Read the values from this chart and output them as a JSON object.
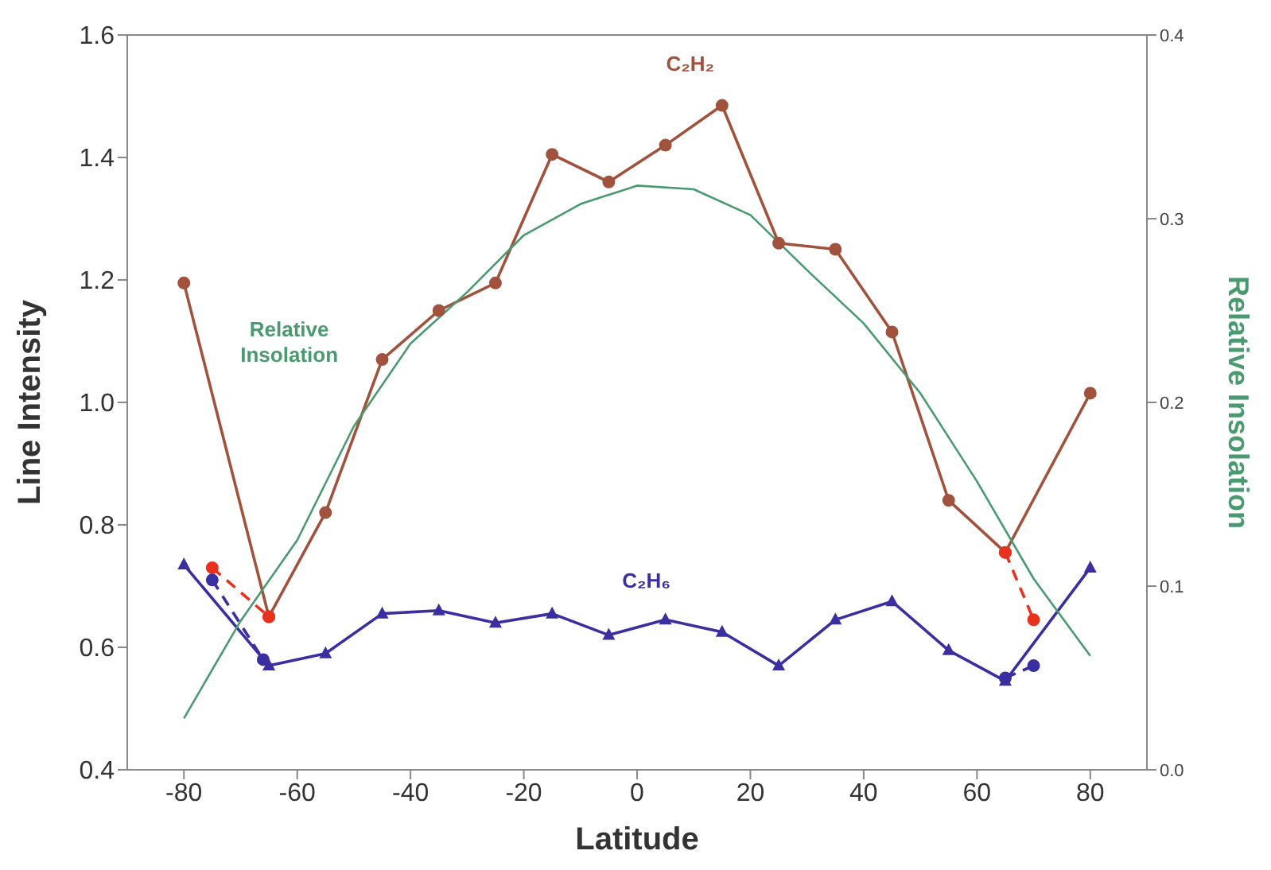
{
  "chart_data": {
    "type": "line",
    "xlabel": "Latitude",
    "ylabel": "Line Intensity",
    "y2label": "Relative Insolation",
    "x": [
      -80,
      -65,
      -55,
      -45,
      -35,
      -25,
      -15,
      -5,
      5,
      15,
      25,
      35,
      45,
      55,
      65,
      80
    ],
    "xlim": [
      -90,
      90
    ],
    "xticks": [
      -80,
      -60,
      -40,
      -20,
      0,
      20,
      40,
      60,
      80
    ],
    "ylim": [
      0.4,
      1.6
    ],
    "yticks": [
      {
        "value": 0.4,
        "label": "0.4"
      },
      {
        "value": 0.6,
        "label": "0.6"
      },
      {
        "value": 0.8,
        "label": "0.8"
      },
      {
        "value": 1.0,
        "label": "1.0"
      },
      {
        "value": 1.2,
        "label": "1.2"
      },
      {
        "value": 1.4,
        "label": "1.4"
      },
      {
        "value": 1.6,
        "label": "1.6"
      }
    ],
    "y2lim": [
      0,
      0.4
    ],
    "y2ticks": [
      {
        "value": 0,
        "label": "0.0"
      },
      {
        "value": 0.1,
        "label": "0.1"
      },
      {
        "value": 0.2,
        "label": "0.2"
      },
      {
        "value": 0.3,
        "label": "0.3"
      },
      {
        "value": 0.4,
        "label": "0.4"
      }
    ],
    "line_style": "solid",
    "series": [
      {
        "name": "C₂H₂",
        "color": "#a0523d",
        "marker": "circle",
        "values": [
          1.195,
          0.65,
          0.82,
          1.07,
          1.15,
          1.195,
          1.405,
          1.36,
          1.42,
          1.485,
          1.26,
          1.25,
          1.115,
          0.84,
          0.755,
          1.015
        ]
      },
      {
        "name": "C₂H₆",
        "color": "#3a2fa0",
        "marker": "triangle",
        "values": [
          0.735,
          0.57,
          0.59,
          0.655,
          0.66,
          0.64,
          0.655,
          0.62,
          0.645,
          0.625,
          0.57,
          0.645,
          0.675,
          0.595,
          0.545,
          0.73
        ]
      },
      {
        "name": "Relative Insolation",
        "color": "#4a9a70",
        "marker": "none",
        "axis": "y2",
        "x": [
          -80,
          -70,
          -60,
          -50,
          -40,
          -30,
          -20,
          -10,
          0,
          10,
          20,
          30,
          40,
          50,
          60,
          70,
          80
        ],
        "values": [
          0.028,
          0.081,
          0.125,
          0.187,
          0.232,
          0.26,
          0.291,
          0.308,
          0.318,
          0.316,
          0.302,
          0.272,
          0.243,
          0.205,
          0.157,
          0.104,
          0.062
        ]
      },
      {
        "color": "#e8321e",
        "marker": "circle",
        "line_style": "dashed",
        "x": [
          -75,
          -65
        ],
        "values": [
          0.73,
          0.65
        ]
      },
      {
        "color": "#e8321e",
        "marker": "circle",
        "line_style": "dashed",
        "x": [
          65,
          70
        ],
        "values": [
          0.755,
          0.645
        ]
      },
      {
        "color": "#3a2fa0",
        "marker": "circle",
        "line_style": "dashed",
        "x": [
          -75,
          -66
        ],
        "values": [
          0.71,
          0.58
        ]
      },
      {
        "color": "#3a2fa0",
        "marker": "circle",
        "line_style": "dashed",
        "x": [
          65,
          70
        ],
        "values": [
          0.55,
          0.57
        ]
      }
    ]
  }
}
